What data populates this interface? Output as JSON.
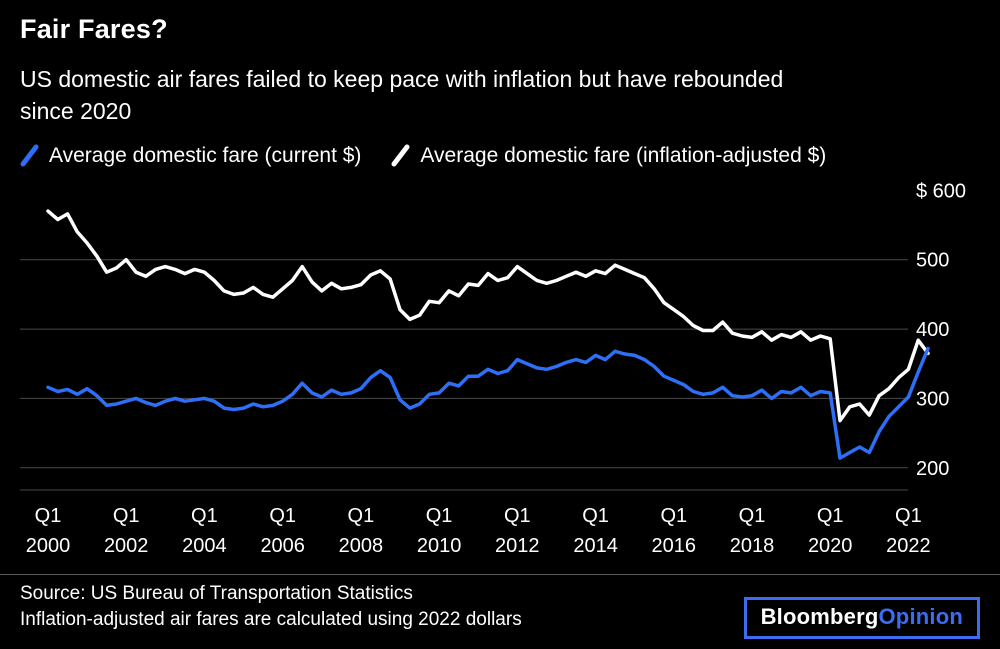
{
  "header": {
    "title": "Fair Fares?",
    "subtitle_line1": "US domestic air fares failed to keep pace with inflation but have rebounded",
    "subtitle_line2": "since 2020"
  },
  "footer": {
    "source_line1": "Source: US Bureau of Transportation Statistics",
    "source_line2": "Inflation-adjusted air fares are calculated using 2022 dollars",
    "brand": {
      "bloomberg": "Bloomberg",
      "opinion": "Opinion",
      "accent_color": "#3C6DF0"
    }
  },
  "colors": {
    "background": "#000000",
    "gridline": "#4a4a4a",
    "text": "#ffffff"
  },
  "chart_data": {
    "type": "line",
    "x_unit": "quarter",
    "x_range": "Q1 2000 to Q3 2022",
    "ylim": [
      168,
      612
    ],
    "grid": "horizontal",
    "legend_position": "top",
    "y_ticks": [
      {
        "label": "$ 600",
        "value": 600,
        "grid": false
      },
      {
        "label": "500",
        "value": 500,
        "grid": true
      },
      {
        "label": "400",
        "value": 400,
        "grid": true
      },
      {
        "label": "300",
        "value": 300,
        "grid": true
      },
      {
        "label": "200",
        "value": 200,
        "grid": true
      }
    ],
    "x_ticks": [
      {
        "index": 0,
        "quarter": "Q1",
        "year": "2000"
      },
      {
        "index": 8,
        "quarter": "Q1",
        "year": "2002"
      },
      {
        "index": 16,
        "quarter": "Q1",
        "year": "2004"
      },
      {
        "index": 24,
        "quarter": "Q1",
        "year": "2006"
      },
      {
        "index": 32,
        "quarter": "Q1",
        "year": "2008"
      },
      {
        "index": 40,
        "quarter": "Q1",
        "year": "2010"
      },
      {
        "index": 48,
        "quarter": "Q1",
        "year": "2012"
      },
      {
        "index": 56,
        "quarter": "Q1",
        "year": "2014"
      },
      {
        "index": 64,
        "quarter": "Q1",
        "year": "2016"
      },
      {
        "index": 72,
        "quarter": "Q1",
        "year": "2018"
      },
      {
        "index": 80,
        "quarter": "Q1",
        "year": "2020"
      },
      {
        "index": 88,
        "quarter": "Q1",
        "year": "2022"
      }
    ],
    "series": [
      {
        "name": "Average domestic fare (current $)",
        "color": "#2D6FF7",
        "values": [
          316,
          310,
          313,
          306,
          314,
          304,
          290,
          292,
          296,
          300,
          294,
          290,
          296,
          300,
          296,
          298,
          300,
          296,
          286,
          284,
          286,
          292,
          288,
          290,
          296,
          306,
          322,
          308,
          302,
          312,
          306,
          308,
          314,
          330,
          340,
          330,
          298,
          286,
          292,
          306,
          308,
          322,
          318,
          332,
          332,
          342,
          336,
          340,
          356,
          350,
          344,
          342,
          346,
          352,
          356,
          352,
          362,
          356,
          368,
          364,
          362,
          356,
          346,
          332,
          326,
          320,
          310,
          306,
          308,
          316,
          304,
          302,
          304,
          312,
          300,
          310,
          308,
          316,
          304,
          310,
          308,
          214,
          222,
          230,
          222,
          252,
          274,
          288,
          302,
          338,
          372
        ]
      },
      {
        "name": "Average domestic fare (inflation-adjusted $)",
        "color": "#FFFFFF",
        "values": [
          570,
          558,
          566,
          540,
          524,
          505,
          482,
          488,
          500,
          482,
          476,
          486,
          490,
          486,
          480,
          486,
          482,
          470,
          455,
          450,
          452,
          460,
          450,
          446,
          458,
          470,
          490,
          468,
          455,
          466,
          458,
          460,
          464,
          478,
          484,
          472,
          428,
          414,
          420,
          440,
          438,
          455,
          448,
          465,
          463,
          480,
          470,
          474,
          490,
          480,
          470,
          466,
          470,
          476,
          482,
          476,
          484,
          480,
          492,
          486,
          480,
          474,
          458,
          438,
          428,
          418,
          405,
          398,
          398,
          410,
          394,
          390,
          388,
          396,
          384,
          392,
          388,
          396,
          384,
          390,
          386,
          268,
          288,
          292,
          276,
          304,
          314,
          330,
          342,
          384,
          365
        ]
      }
    ]
  }
}
